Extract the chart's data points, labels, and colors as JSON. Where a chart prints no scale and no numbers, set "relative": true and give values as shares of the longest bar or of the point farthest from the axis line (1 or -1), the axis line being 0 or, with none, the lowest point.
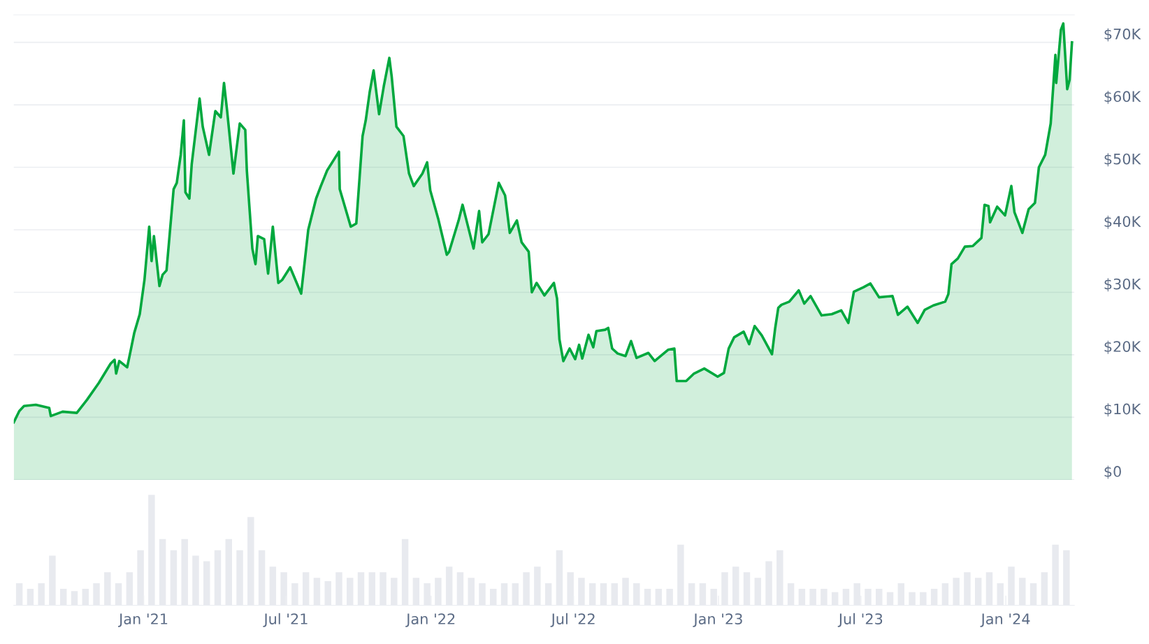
{
  "chart_data": [
    {
      "type": "area",
      "grid": "y",
      "tick_labels": "y",
      "marker": "none",
      "line_style": "solid",
      "xlim": [
        "2020-07-20",
        "2024-03-28"
      ],
      "ylim": [
        0,
        74.4
      ],
      "yticks": [
        {
          "value": 0,
          "label": "$0"
        },
        {
          "value": 10,
          "label": "$10K"
        },
        {
          "value": 20,
          "label": "$20K"
        },
        {
          "value": 30,
          "label": "$30K"
        },
        {
          "value": 40,
          "label": "$40K"
        },
        {
          "value": 50,
          "label": "$50K"
        },
        {
          "value": 60,
          "label": "$60K"
        },
        {
          "value": 70,
          "label": "$70K"
        }
      ],
      "series": [
        {
          "color": "#00a83e",
          "x": [
            "2020-07-20",
            "2020-07-27",
            "2020-08-02",
            "2020-08-17",
            "2020-09-03",
            "2020-09-05",
            "2020-09-20",
            "2020-10-08",
            "2020-10-21",
            "2020-11-05",
            "2020-11-20",
            "2020-11-25",
            "2020-11-27",
            "2020-12-01",
            "2020-12-11",
            "2020-12-16",
            "2020-12-20",
            "2020-12-27",
            "2021-01-02",
            "2021-01-08",
            "2021-01-11",
            "2021-01-14",
            "2021-01-21",
            "2021-01-25",
            "2021-01-30",
            "2021-02-08",
            "2021-02-12",
            "2021-02-17",
            "2021-02-21",
            "2021-02-23",
            "2021-02-28",
            "2021-03-03",
            "2021-03-13",
            "2021-03-17",
            "2021-03-25",
            "2021-04-02",
            "2021-04-09",
            "2021-04-13",
            "2021-04-17",
            "2021-04-25",
            "2021-05-03",
            "2021-05-10",
            "2021-05-12",
            "2021-05-19",
            "2021-05-23",
            "2021-05-26",
            "2021-06-03",
            "2021-06-08",
            "2021-06-14",
            "2021-06-21",
            "2021-06-26",
            "2021-07-06",
            "2021-07-20",
            "2021-07-29",
            "2021-08-08",
            "2021-08-14",
            "2021-08-22",
            "2021-09-06",
            "2021-09-07",
            "2021-09-21",
            "2021-09-28",
            "2021-10-06",
            "2021-10-10",
            "2021-10-15",
            "2021-10-20",
            "2021-10-27",
            "2021-11-02",
            "2021-11-09",
            "2021-11-12",
            "2021-11-18",
            "2021-11-27",
            "2021-12-04",
            "2021-12-10",
            "2021-12-21",
            "2021-12-27",
            "2021-12-31",
            "2022-01-10",
            "2022-01-21",
            "2022-01-24",
            "2022-02-05",
            "2022-02-10",
            "2022-02-14",
            "2022-02-24",
            "2022-03-03",
            "2022-03-07",
            "2022-03-15",
            "2022-03-28",
            "2022-04-05",
            "2022-04-11",
            "2022-04-20",
            "2022-04-26",
            "2022-05-05",
            "2022-05-09",
            "2022-05-15",
            "2022-05-25",
            "2022-06-06",
            "2022-06-10",
            "2022-06-13",
            "2022-06-18",
            "2022-06-26",
            "2022-07-03",
            "2022-07-08",
            "2022-07-12",
            "2022-07-20",
            "2022-07-26",
            "2022-07-30",
            "2022-08-10",
            "2022-08-14",
            "2022-08-19",
            "2022-08-26",
            "2022-09-05",
            "2022-09-12",
            "2022-09-19",
            "2022-10-04",
            "2022-10-12",
            "2022-10-29",
            "2022-11-06",
            "2022-11-09",
            "2022-11-21",
            "2022-12-01",
            "2022-12-14",
            "2022-12-31",
            "2023-01-08",
            "2023-01-14",
            "2023-01-21",
            "2023-02-02",
            "2023-02-09",
            "2023-02-16",
            "2023-02-25",
            "2023-03-10",
            "2023-03-14",
            "2023-03-18",
            "2023-03-22",
            "2023-04-01",
            "2023-04-13",
            "2023-04-20",
            "2023-04-28",
            "2023-05-12",
            "2023-05-25",
            "2023-06-06",
            "2023-06-15",
            "2023-06-22",
            "2023-07-04",
            "2023-07-13",
            "2023-07-24",
            "2023-08-10",
            "2023-08-17",
            "2023-08-29",
            "2023-09-11",
            "2023-09-20",
            "2023-10-01",
            "2023-10-16",
            "2023-10-20",
            "2023-10-24",
            "2023-11-01",
            "2023-11-10",
            "2023-11-20",
            "2023-12-01",
            "2023-12-05",
            "2023-12-10",
            "2023-12-12",
            "2023-12-21",
            "2023-12-31",
            "2024-01-08",
            "2024-01-12",
            "2024-01-22",
            "2024-01-30",
            "2024-02-07",
            "2024-02-12",
            "2024-02-20",
            "2024-02-27",
            "2024-03-04",
            "2024-03-05",
            "2024-03-11",
            "2024-03-14",
            "2024-03-19",
            "2024-03-22",
            "2024-03-25"
          ],
          "values": [
            9.2,
            11.0,
            11.8,
            12.0,
            11.5,
            10.2,
            10.9,
            10.7,
            12.8,
            15.5,
            18.6,
            19.2,
            17.0,
            19.0,
            18.0,
            21.0,
            23.5,
            26.5,
            32.0,
            40.5,
            35.0,
            39.0,
            31.0,
            32.8,
            33.5,
            46.5,
            47.5,
            52.0,
            57.5,
            46.0,
            45.0,
            50.5,
            61.0,
            56.5,
            52.0,
            59.0,
            58.0,
            63.5,
            59.0,
            49.0,
            57.0,
            56.0,
            49.5,
            37.0,
            34.5,
            39.0,
            38.5,
            33.0,
            40.5,
            31.5,
            32.0,
            34.0,
            29.8,
            40.0,
            45.0,
            47.0,
            49.5,
            52.5,
            46.5,
            40.5,
            41.0,
            55.0,
            57.5,
            62.0,
            65.5,
            58.5,
            63.0,
            67.5,
            64.5,
            56.5,
            55.0,
            49.0,
            47.0,
            49.0,
            50.8,
            46.3,
            41.8,
            36.0,
            36.5,
            41.5,
            44.0,
            42.0,
            37.0,
            43.0,
            38.0,
            39.3,
            47.5,
            45.5,
            39.5,
            41.5,
            38.0,
            36.5,
            30.0,
            31.5,
            29.5,
            31.5,
            29.0,
            22.5,
            19.0,
            21.0,
            19.3,
            21.6,
            19.4,
            23.2,
            21.2,
            23.8,
            24.0,
            24.3,
            21.0,
            20.2,
            19.8,
            22.2,
            19.5,
            20.3,
            19.0,
            20.8,
            21.0,
            15.8,
            15.8,
            17.0,
            17.8,
            16.5,
            17.1,
            21.0,
            22.8,
            23.7,
            21.7,
            24.6,
            23.1,
            20.1,
            24.2,
            27.5,
            28.0,
            28.5,
            30.3,
            28.2,
            29.4,
            26.3,
            26.5,
            27.1,
            25.1,
            30.1,
            30.8,
            31.4,
            29.2,
            29.4,
            26.4,
            27.7,
            25.1,
            27.2,
            27.9,
            28.5,
            29.7,
            34.5,
            35.4,
            37.3,
            37.4,
            38.7,
            44.0,
            43.8,
            41.2,
            43.7,
            42.3,
            47.0,
            42.8,
            39.5,
            43.3,
            44.3,
            50.0,
            52.0,
            57.0,
            68.0,
            63.5,
            72.0,
            73.0,
            62.5,
            64.0,
            70.0
          ]
        }
      ]
    },
    {
      "type": "bar",
      "relative": true,
      "xlim": [
        "2020-07-20",
        "2024-03-28"
      ],
      "xticks": [
        {
          "value": "2021-01-01",
          "label": "Jan '21"
        },
        {
          "value": "2021-07-01",
          "label": "Jul '21"
        },
        {
          "value": "2022-01-01",
          "label": "Jan '22"
        },
        {
          "value": "2022-07-01",
          "label": "Jul '22"
        },
        {
          "value": "2023-01-01",
          "label": "Jan '23"
        },
        {
          "value": "2023-07-01",
          "label": "Jul '23"
        },
        {
          "value": "2024-01-01",
          "label": "Jan '24"
        }
      ],
      "series": [
        {
          "color": "#e8eaef",
          "x": [
            "2020-07-27",
            "2020-08-10",
            "2020-08-24",
            "2020-09-07",
            "2020-09-21",
            "2020-10-05",
            "2020-10-19",
            "2020-11-02",
            "2020-11-16",
            "2020-11-30",
            "2020-12-14",
            "2020-12-28",
            "2021-01-11",
            "2021-01-25",
            "2021-02-08",
            "2021-02-22",
            "2021-03-08",
            "2021-03-22",
            "2021-04-05",
            "2021-04-19",
            "2021-05-03",
            "2021-05-17",
            "2021-05-31",
            "2021-06-14",
            "2021-06-28",
            "2021-07-12",
            "2021-07-26",
            "2021-08-09",
            "2021-08-23",
            "2021-09-06",
            "2021-09-20",
            "2021-10-04",
            "2021-10-18",
            "2021-11-01",
            "2021-11-15",
            "2021-11-29",
            "2021-12-13",
            "2021-12-27",
            "2022-01-10",
            "2022-01-24",
            "2022-02-07",
            "2022-02-21",
            "2022-03-07",
            "2022-03-21",
            "2022-04-04",
            "2022-04-18",
            "2022-05-02",
            "2022-05-16",
            "2022-05-30",
            "2022-06-13",
            "2022-06-27",
            "2022-07-11",
            "2022-07-25",
            "2022-08-08",
            "2022-08-22",
            "2022-09-05",
            "2022-09-19",
            "2022-10-03",
            "2022-10-17",
            "2022-10-31",
            "2022-11-14",
            "2022-11-28",
            "2022-12-12",
            "2022-12-26",
            "2023-01-09",
            "2023-01-23",
            "2023-02-06",
            "2023-02-20",
            "2023-03-06",
            "2023-03-20",
            "2023-04-03",
            "2023-04-17",
            "2023-05-01",
            "2023-05-15",
            "2023-05-29",
            "2023-06-12",
            "2023-06-26",
            "2023-07-10",
            "2023-07-24",
            "2023-08-07",
            "2023-08-21",
            "2023-09-04",
            "2023-09-18",
            "2023-10-02",
            "2023-10-16",
            "2023-10-30",
            "2023-11-13",
            "2023-11-27",
            "2023-12-11",
            "2023-12-25",
            "2024-01-08",
            "2024-01-22",
            "2024-02-05",
            "2024-02-19",
            "2024-03-04",
            "2024-03-18"
          ],
          "values": [
            0.2,
            0.15,
            0.2,
            0.45,
            0.15,
            0.13,
            0.15,
            0.2,
            0.3,
            0.2,
            0.3,
            0.5,
            1.0,
            0.6,
            0.5,
            0.6,
            0.45,
            0.4,
            0.5,
            0.6,
            0.5,
            0.8,
            0.5,
            0.35,
            0.3,
            0.2,
            0.3,
            0.25,
            0.22,
            0.3,
            0.25,
            0.3,
            0.3,
            0.3,
            0.25,
            0.6,
            0.25,
            0.2,
            0.25,
            0.35,
            0.3,
            0.25,
            0.2,
            0.15,
            0.2,
            0.2,
            0.3,
            0.35,
            0.2,
            0.5,
            0.3,
            0.25,
            0.2,
            0.2,
            0.2,
            0.25,
            0.2,
            0.15,
            0.15,
            0.15,
            0.55,
            0.2,
            0.2,
            0.15,
            0.3,
            0.35,
            0.3,
            0.25,
            0.4,
            0.5,
            0.2,
            0.15,
            0.15,
            0.15,
            0.12,
            0.15,
            0.2,
            0.15,
            0.15,
            0.12,
            0.2,
            0.12,
            0.12,
            0.15,
            0.2,
            0.25,
            0.3,
            0.25,
            0.3,
            0.2,
            0.35,
            0.25,
            0.2,
            0.3,
            0.55,
            0.5
          ]
        }
      ]
    }
  ]
}
